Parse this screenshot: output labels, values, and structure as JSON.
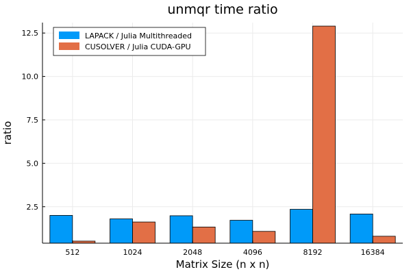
{
  "chart_data": {
    "type": "bar",
    "title": "unmqr time ratio",
    "xlabel": "Matrix Size (n x n)",
    "ylabel": "ratio",
    "categories": [
      "512",
      "1024",
      "2048",
      "4096",
      "8192",
      "16384"
    ],
    "series": [
      {
        "name": "LAPACK / Julia Multithreaded",
        "color": "#009af9",
        "values": [
          2.0,
          1.8,
          1.98,
          1.72,
          2.35,
          2.08
        ]
      },
      {
        "name": "CUSOLVER / Julia  CUDA-GPU",
        "color": "#e26f46",
        "values": [
          0.52,
          1.62,
          1.33,
          1.08,
          12.9,
          0.8
        ]
      }
    ],
    "ylim": [
      0.4,
      13.1
    ],
    "yticks": [
      2.5,
      5.0,
      7.5,
      10.0,
      12.5
    ],
    "ytick_labels": [
      "2.5",
      "5.0",
      "7.5",
      "10.0",
      "12.5"
    ],
    "grid": true,
    "legend_position": "top-left"
  }
}
